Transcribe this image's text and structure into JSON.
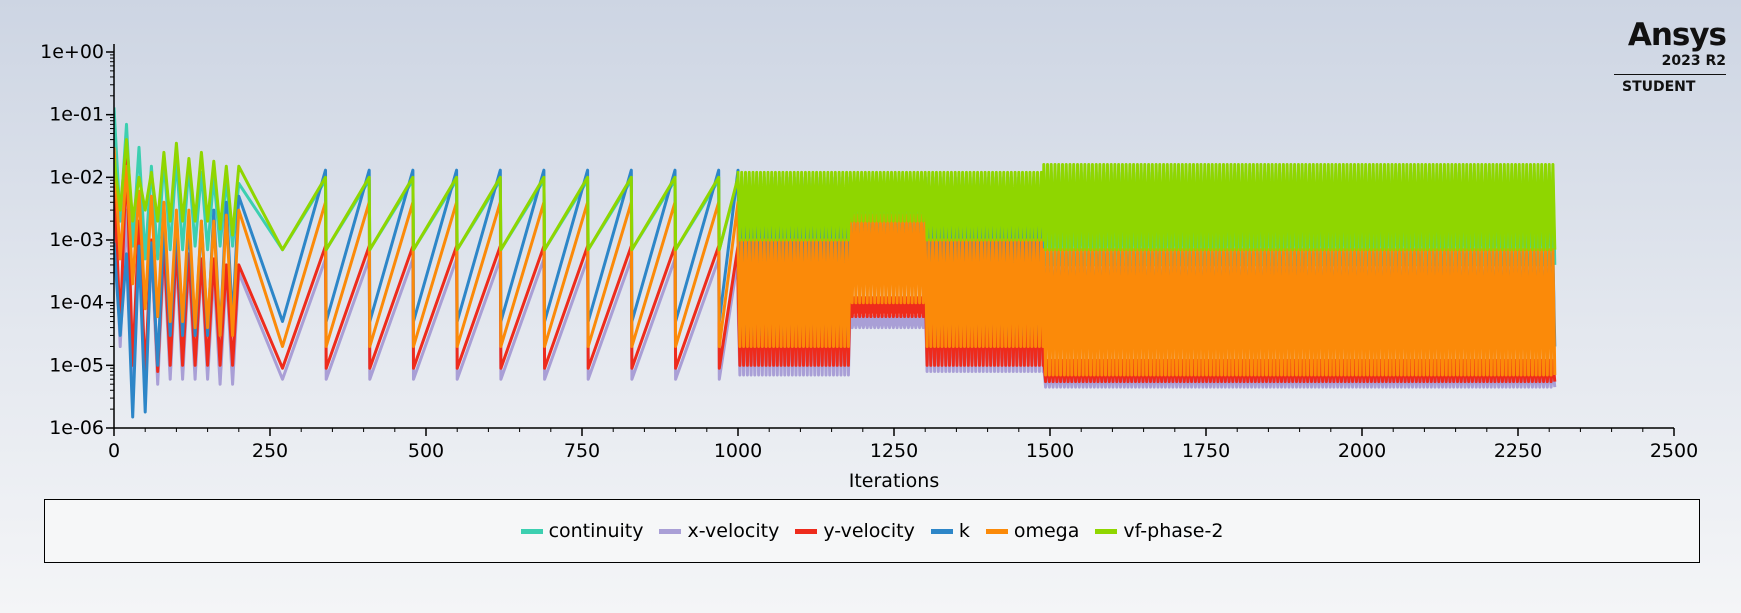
{
  "brand": {
    "name": "Ansys",
    "version": "2023 R2",
    "edition": "STUDENT"
  },
  "chart_data": {
    "type": "line",
    "title": "",
    "xlabel": "Iterations",
    "ylabel": "",
    "x_scale": "linear",
    "y_scale": "log",
    "xlim": [
      0,
      2500
    ],
    "ylim": [
      1e-06,
      1
    ],
    "x_ticks": [
      0,
      250,
      500,
      750,
      1000,
      1250,
      1500,
      1750,
      2000,
      2250,
      2500
    ],
    "x_tick_labels": [
      "0",
      "250",
      "500",
      "750",
      "1000",
      "1250",
      "1500",
      "1750",
      "2000",
      "2250",
      "2500"
    ],
    "y_ticks": [
      1,
      0.1,
      0.01,
      0.001,
      0.0001,
      1e-05,
      1e-06
    ],
    "y_tick_labels": [
      "1e+00",
      "1e-01",
      "1e-02",
      "1e-03",
      "1e-04",
      "1e-05",
      "1e-06"
    ],
    "grid": false,
    "legend_position": "bottom",
    "last_iteration": 2310,
    "series": [
      {
        "name": "continuity",
        "color": "#3ccfb0",
        "segments": [
          {
            "x": [
              0,
              10,
              20,
              30,
              40,
              50,
              60,
              70,
              80,
              90,
              100,
              110,
              120,
              130,
              140,
              150,
              160,
              170,
              180,
              190,
              200
            ],
            "y": [
              0.13,
              0.002,
              0.07,
              0.0008,
              0.03,
              0.0005,
              0.015,
              0.0005,
              0.02,
              0.0007,
              0.02,
              0.0007,
              0.015,
              0.0008,
              0.012,
              0.0007,
              0.01,
              0.0008,
              0.009,
              0.0008,
              0.008
            ]
          },
          {
            "period": 70,
            "start": 270,
            "end": 1000,
            "peak": 0.009,
            "base": 0.0007,
            "shape": "ramp"
          },
          {
            "start": 1000,
            "end": 1180,
            "mode": "band",
            "lo": 0.0005,
            "hi": 0.008
          },
          {
            "start": 1180,
            "end": 1300,
            "mode": "band",
            "lo": 0.001,
            "hi": 0.01
          },
          {
            "start": 1300,
            "end": 1490,
            "mode": "band",
            "lo": 0.0005,
            "hi": 0.008
          },
          {
            "start": 1490,
            "end": 2310,
            "mode": "band",
            "lo": 0.0004,
            "hi": 0.012
          }
        ]
      },
      {
        "name": "x-velocity",
        "color": "#a99fd6",
        "segments": [
          {
            "x": [
              0,
              10,
              20,
              30,
              40,
              50,
              60,
              70,
              80,
              90,
              100,
              110,
              120,
              130,
              140,
              150,
              160,
              170,
              180,
              190,
              200
            ],
            "y": [
              0.004,
              2e-05,
              0.003,
              7e-06,
              0.001,
              5e-06,
              0.0008,
              5e-06,
              0.0006,
              6e-06,
              0.0005,
              6e-06,
              0.0004,
              6e-06,
              0.0004,
              6e-06,
              0.0003,
              5e-06,
              0.0003,
              5e-06,
              0.0003
            ]
          },
          {
            "period": 70,
            "start": 270,
            "end": 1000,
            "peak": 0.0005,
            "base": 6e-06,
            "shape": "ramp"
          },
          {
            "start": 1000,
            "end": 1180,
            "mode": "band",
            "lo": 7e-06,
            "hi": 0.0001
          },
          {
            "start": 1180,
            "end": 1300,
            "mode": "band",
            "lo": 4e-05,
            "hi": 6e-05
          },
          {
            "start": 1300,
            "end": 1490,
            "mode": "band",
            "lo": 8e-06,
            "hi": 0.0001
          },
          {
            "start": 1490,
            "end": 2310,
            "mode": "band",
            "lo": 4.5e-06,
            "hi": 9e-06
          }
        ]
      },
      {
        "name": "y-velocity",
        "color": "#ee2b1c",
        "segments": [
          {
            "x": [
              0,
              10,
              20,
              30,
              40,
              50,
              60,
              70,
              80,
              90,
              100,
              110,
              120,
              130,
              140,
              150,
              160,
              170,
              180,
              190,
              200
            ],
            "y": [
              0.01,
              4e-05,
              0.02,
              1e-05,
              0.002,
              7e-06,
              0.001,
              8e-06,
              0.0009,
              1e-05,
              0.0008,
              1e-05,
              0.0006,
              1e-05,
              0.0005,
              1e-05,
              0.0005,
              1e-05,
              0.0004,
              1e-05,
              0.0004
            ]
          },
          {
            "period": 70,
            "start": 270,
            "end": 1000,
            "peak": 0.0008,
            "base": 9e-06,
            "shape": "ramp"
          },
          {
            "start": 1000,
            "end": 1180,
            "mode": "band",
            "lo": 1e-05,
            "hi": 0.0002
          },
          {
            "start": 1180,
            "end": 1300,
            "mode": "band",
            "lo": 6e-05,
            "hi": 0.00012
          },
          {
            "start": 1300,
            "end": 1490,
            "mode": "band",
            "lo": 1e-05,
            "hi": 0.0002
          },
          {
            "start": 1490,
            "end": 2310,
            "mode": "band",
            "lo": 5.5e-06,
            "hi": 1.2e-05
          }
        ]
      },
      {
        "name": "k",
        "color": "#2d86c8",
        "segments": [
          {
            "x": [
              0,
              10,
              20,
              30,
              40,
              50,
              60,
              70,
              80,
              90,
              100,
              110,
              120,
              130,
              140,
              150,
              160,
              170,
              180,
              190,
              200
            ],
            "y": [
              0.0009,
              3e-05,
              0.0006,
              1.5e-06,
              0.0008,
              1.8e-06,
              0.0009,
              1e-05,
              0.002,
              3e-05,
              0.002,
              3e-05,
              0.002,
              3e-05,
              0.002,
              3e-05,
              0.003,
              3e-05,
              0.004,
              5e-05,
              0.005
            ]
          },
          {
            "period": 70,
            "start": 270,
            "end": 1000,
            "peak": 0.013,
            "base": 5e-05,
            "shape": "ramp"
          },
          {
            "start": 1000,
            "end": 1180,
            "mode": "band",
            "lo": 3e-05,
            "hi": 0.01
          },
          {
            "start": 1180,
            "end": 1300,
            "mode": "band",
            "lo": 0.0002,
            "hi": 0.002
          },
          {
            "start": 1300,
            "end": 1490,
            "mode": "band",
            "lo": 3e-05,
            "hi": 0.01
          },
          {
            "start": 1490,
            "end": 2310,
            "mode": "band",
            "lo": 2e-05,
            "hi": 0.0006
          }
        ]
      },
      {
        "name": "omega",
        "color": "#fb8a09",
        "segments": [
          {
            "x": [
              0,
              10,
              20,
              30,
              40,
              50,
              60,
              70,
              80,
              90,
              100,
              110,
              120,
              130,
              140,
              150,
              160,
              170,
              180,
              190,
              200
            ],
            "y": [
              0.03,
              0.0005,
              0.015,
              0.0002,
              0.006,
              8e-05,
              0.005,
              6e-05,
              0.004,
              5e-05,
              0.003,
              5e-05,
              0.003,
              4e-05,
              0.002,
              4e-05,
              0.002,
              3e-05,
              0.0025,
              3e-05,
              0.003
            ]
          },
          {
            "period": 70,
            "start": 270,
            "end": 1000,
            "peak": 0.004,
            "base": 2e-05,
            "shape": "ramp"
          },
          {
            "start": 1000,
            "end": 1180,
            "mode": "band",
            "lo": 2e-05,
            "hi": 0.001
          },
          {
            "start": 1180,
            "end": 1300,
            "mode": "band",
            "lo": 0.0001,
            "hi": 0.0025
          },
          {
            "start": 1300,
            "end": 1490,
            "mode": "band",
            "lo": 2e-05,
            "hi": 0.001
          },
          {
            "start": 1490,
            "end": 2310,
            "mode": "band",
            "lo": 7e-06,
            "hi": 0.0007
          }
        ]
      },
      {
        "name": "vf-phase-2",
        "color": "#8fd600",
        "segments": [
          {
            "x": [
              0,
              10,
              20,
              30,
              40,
              50,
              60,
              70,
              80,
              90,
              100,
              110,
              120,
              130,
              140,
              150,
              160,
              170,
              180,
              190,
              200
            ],
            "y": [
              0.02,
              0.003,
              0.04,
              0.002,
              0.01,
              0.003,
              0.012,
              0.002,
              0.025,
              0.002,
              0.035,
              0.002,
              0.02,
              0.002,
              0.025,
              0.002,
              0.018,
              0.0015,
              0.015,
              0.0012,
              0.015
            ]
          },
          {
            "period": 70,
            "start": 270,
            "end": 1000,
            "peak": 0.01,
            "base": 0.0007,
            "shape": "ramp"
          },
          {
            "start": 1000,
            "end": 1180,
            "mode": "band",
            "lo": 0.001,
            "hi": 0.012
          },
          {
            "start": 1180,
            "end": 1300,
            "mode": "band",
            "lo": 0.002,
            "hi": 0.012
          },
          {
            "start": 1300,
            "end": 1490,
            "mode": "band",
            "lo": 0.001,
            "hi": 0.012
          },
          {
            "start": 1490,
            "end": 2310,
            "mode": "band",
            "lo": 0.0007,
            "hi": 0.016
          }
        ]
      }
    ]
  }
}
